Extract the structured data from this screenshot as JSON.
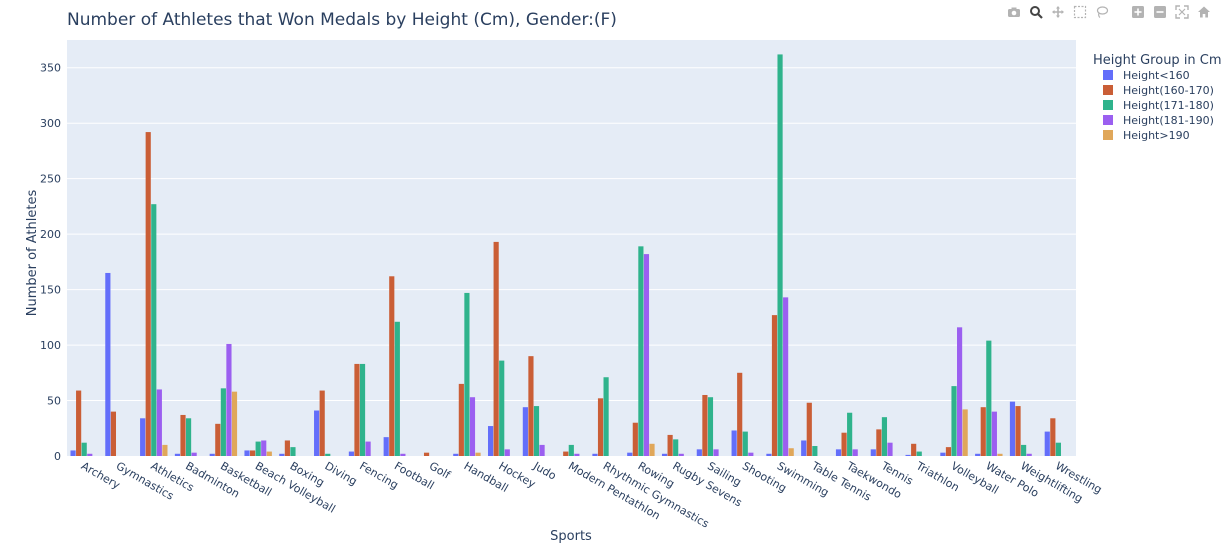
{
  "chart_data": {
    "type": "bar",
    "title": "Number of Athletes that Won Medals by Height (Cm), Gender:(F)",
    "xlabel": "Sports",
    "ylabel": "Number of Athletes",
    "ylim": [
      0,
      375
    ],
    "yticks": [
      0,
      50,
      100,
      150,
      200,
      250,
      300,
      350
    ],
    "grid": true,
    "legend_title": "Height Group in Cm",
    "legend_position": "top-right",
    "categories": [
      "Archery",
      "Gymnastics",
      "Athletics",
      "Badminton",
      "Basketball",
      "Beach Volleyball",
      "Boxing",
      "Diving",
      "Fencing",
      "Football",
      "Golf",
      "Handball",
      "Hockey",
      "Judo",
      "Modern Pentathlon",
      "Rhythmic Gymnastics",
      "Rowing",
      "Rugby Sevens",
      "Sailing",
      "Shooting",
      "Swimming",
      "Table Tennis",
      "Taekwondo",
      "Tennis",
      "Triathlon",
      "Volleyball",
      "Water Polo",
      "Weightlifting",
      "Wrestling"
    ],
    "series": [
      {
        "name": "Height<160",
        "color": "#636efa",
        "values": [
          5,
          165,
          34,
          2,
          2,
          5,
          2,
          41,
          4,
          17,
          0,
          2,
          27,
          44,
          0,
          2,
          3,
          2,
          6,
          23,
          2,
          14,
          6,
          6,
          1,
          3,
          2,
          49,
          22
        ]
      },
      {
        "name": "Height(160-170)",
        "color": "#ca5e36",
        "values": [
          59,
          40,
          292,
          37,
          29,
          5,
          14,
          59,
          83,
          162,
          3,
          65,
          193,
          90,
          4,
          52,
          30,
          19,
          55,
          75,
          127,
          48,
          21,
          24,
          11,
          8,
          44,
          45,
          34
        ]
      },
      {
        "name": "Height(171-180)",
        "color": "#2fb38c",
        "values": [
          12,
          0,
          227,
          34,
          61,
          13,
          8,
          2,
          83,
          121,
          0,
          147,
          86,
          45,
          10,
          71,
          189,
          15,
          53,
          22,
          362,
          9,
          39,
          35,
          4,
          63,
          104,
          10,
          12
        ]
      },
      {
        "name": "Height(181-190)",
        "color": "#9b5ff0",
        "values": [
          2,
          0,
          60,
          3,
          101,
          14,
          0,
          0,
          13,
          2,
          0,
          53,
          6,
          10,
          2,
          0,
          182,
          2,
          6,
          3,
          143,
          0,
          6,
          12,
          0,
          116,
          40,
          2,
          0
        ]
      },
      {
        "name": "Height>190",
        "color": "#e0a75a",
        "values": [
          0,
          0,
          10,
          0,
          58,
          4,
          0,
          0,
          0,
          0,
          0,
          3,
          0,
          0,
          0,
          0,
          11,
          0,
          0,
          0,
          7,
          0,
          0,
          0,
          0,
          42,
          2,
          0,
          0
        ]
      }
    ]
  },
  "modebar": {
    "buttons": [
      "camera-icon",
      "zoom-icon",
      "pan-icon",
      "box-select-icon",
      "lasso-icon",
      "zoom-in-icon",
      "zoom-out-icon",
      "autoscale-icon",
      "home-icon",
      "plotly-logo-icon"
    ]
  }
}
